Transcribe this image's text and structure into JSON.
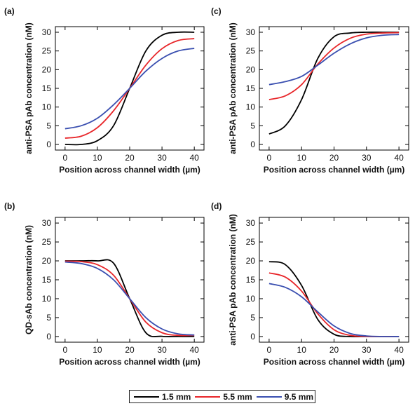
{
  "chart_data": [
    {
      "panel_label": "(a)",
      "type": "line",
      "ylabel": "anti-PSA pAb concentration (nM)",
      "xlabel": "Position across channel width (µm)",
      "xlim": [
        -3,
        43
      ],
      "ylim": [
        -1.5,
        31.5
      ],
      "xticks": [
        "0",
        "10",
        "20",
        "30",
        "40"
      ],
      "yticks": [
        "0",
        "5",
        "10",
        "15",
        "20",
        "25",
        "30"
      ],
      "x": [
        0,
        5,
        10,
        15,
        20,
        25,
        30,
        35,
        40
      ],
      "series": [
        {
          "name": "1.5 mm",
          "color": "#000000",
          "values": [
            0.0,
            0.0,
            1.0,
            5.0,
            15.0,
            25.0,
            29.2,
            30.0,
            30.0
          ]
        },
        {
          "name": "5.5 mm",
          "color": "#e8262a",
          "values": [
            1.7,
            2.2,
            4.5,
            9.0,
            15.0,
            21.2,
            25.6,
            27.8,
            28.3
          ]
        },
        {
          "name": "9.5 mm",
          "color": "#3a4fb0",
          "values": [
            4.2,
            5.0,
            7.0,
            10.6,
            15.0,
            19.6,
            23.0,
            25.0,
            25.7
          ]
        }
      ]
    },
    {
      "panel_label": "(c)",
      "type": "line",
      "ylabel": "anti-PSA pAb concentration (nM)",
      "xlabel": "Position across channel width (µm)",
      "xlim": [
        -3,
        43
      ],
      "ylim": [
        -1.5,
        31.5
      ],
      "xticks": [
        "0",
        "10",
        "20",
        "30",
        "40"
      ],
      "yticks": [
        "0",
        "5",
        "10",
        "15",
        "20",
        "25",
        "30"
      ],
      "x": [
        0,
        5,
        10,
        15,
        20,
        25,
        30,
        35,
        40
      ],
      "series": [
        {
          "name": "1.5 mm",
          "color": "#000000",
          "values": [
            2.8,
            5.0,
            12.0,
            23.0,
            28.8,
            29.8,
            30.0,
            30.0,
            30.0
          ]
        },
        {
          "name": "5.5 mm",
          "color": "#e8262a",
          "values": [
            12.0,
            13.0,
            16.0,
            21.5,
            25.8,
            28.4,
            29.5,
            29.8,
            29.9
          ]
        },
        {
          "name": "9.5 mm",
          "color": "#3a4fb0",
          "values": [
            16.0,
            16.8,
            18.2,
            21.2,
            24.4,
            26.9,
            28.5,
            29.2,
            29.4
          ]
        }
      ]
    },
    {
      "panel_label": "(b)",
      "type": "line",
      "ylabel": "QD-sAb concentration (nM)",
      "xlabel": "Position across channel width (µm)",
      "xlim": [
        -3,
        43
      ],
      "ylim": [
        -1.5,
        31.5
      ],
      "xticks": [
        "0",
        "10",
        "20",
        "30",
        "40"
      ],
      "yticks": [
        "0",
        "5",
        "10",
        "15",
        "20",
        "25",
        "30"
      ],
      "x": [
        0,
        5,
        10,
        15,
        20,
        25,
        30,
        35,
        40
      ],
      "series": [
        {
          "name": "1.5 mm",
          "color": "#000000",
          "values": [
            20.0,
            20.0,
            20.0,
            19.4,
            10.0,
            1.0,
            0.05,
            0.0,
            0.0
          ]
        },
        {
          "name": "5.5 mm",
          "color": "#e8262a",
          "values": [
            19.9,
            19.8,
            19.0,
            16.2,
            10.0,
            3.8,
            1.0,
            0.3,
            0.3
          ]
        },
        {
          "name": "9.5 mm",
          "color": "#3a4fb0",
          "values": [
            19.7,
            19.3,
            18.0,
            15.0,
            10.0,
            5.0,
            2.0,
            0.7,
            0.4
          ]
        }
      ]
    },
    {
      "panel_label": "(d)",
      "type": "line",
      "ylabel": "anti-PSA pAb concentration (nM)",
      "xlabel": "Position across channel width (µm)",
      "xlim": [
        -3,
        43
      ],
      "ylim": [
        -1.5,
        31.5
      ],
      "xticks": [
        "0",
        "10",
        "20",
        "30",
        "40"
      ],
      "yticks": [
        "0",
        "5",
        "10",
        "15",
        "20",
        "25",
        "30"
      ],
      "x": [
        0,
        5,
        10,
        15,
        20,
        25,
        30,
        35,
        40
      ],
      "series": [
        {
          "name": "1.5 mm",
          "color": "#000000",
          "values": [
            19.8,
            19.0,
            13.5,
            4.5,
            0.6,
            0.0,
            0.0,
            0.0,
            0.0
          ]
        },
        {
          "name": "5.5 mm",
          "color": "#e8262a",
          "values": [
            16.8,
            15.7,
            12.0,
            6.0,
            1.8,
            0.3,
            0.0,
            0.0,
            0.0
          ]
        },
        {
          "name": "9.5 mm",
          "color": "#3a4fb0",
          "values": [
            14.0,
            13.0,
            10.5,
            6.5,
            2.8,
            0.8,
            0.15,
            0.0,
            0.0
          ]
        }
      ]
    }
  ],
  "legend": [
    {
      "label": "1.5 mm",
      "color": "#000000"
    },
    {
      "label": "5.5 mm",
      "color": "#e8262a"
    },
    {
      "label": "9.5 mm",
      "color": "#3a4fb0"
    }
  ]
}
